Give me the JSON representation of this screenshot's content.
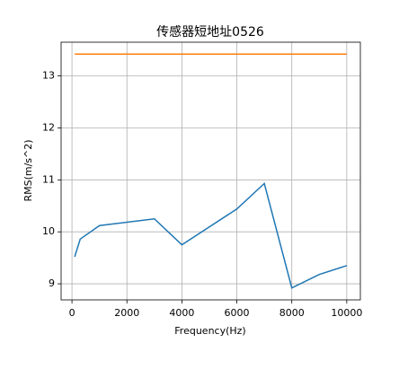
{
  "chart_data": {
    "type": "line",
    "title": "传感器短地址0526",
    "x_label": "Frequency(Hz)",
    "y_label": "RMS(m/s^2)",
    "series": [
      {
        "x": [
          100,
          300,
          1000,
          3000,
          4000,
          6000,
          7000,
          8000,
          9000,
          10000
        ],
        "values": [
          9.52,
          9.86,
          10.12,
          10.25,
          9.75,
          10.44,
          10.93,
          8.92,
          9.18,
          9.35
        ],
        "color": "#1f77b4"
      },
      {
        "x": [
          100,
          10000
        ],
        "values": [
          13.42,
          13.42
        ],
        "color": "#ff7f0e"
      }
    ],
    "xlim": [
      -395,
      10495
    ],
    "ylim": [
      8.69,
      13.65
    ],
    "xticks": [
      0,
      2000,
      4000,
      6000,
      8000,
      10000
    ],
    "yticks": [
      9,
      10,
      11,
      12,
      13
    ],
    "grid": true
  }
}
